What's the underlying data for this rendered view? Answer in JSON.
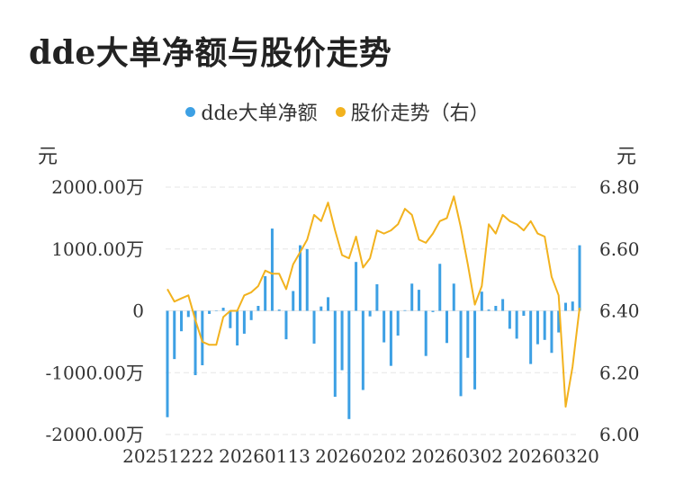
{
  "title": "dde大单净额与股价走势",
  "legend": [
    {
      "name": "dde大单净额",
      "color": "#3da0e4"
    },
    {
      "name": "股价走势（右）",
      "color": "#f2b21e"
    }
  ],
  "left_unit": "元",
  "right_unit": "元",
  "chart_data": {
    "type": "bar+line",
    "left_axis": {
      "ticks": [
        2000,
        1000,
        0,
        -1000,
        -2000
      ],
      "tick_labels": [
        "2000.00万",
        "1000.00万",
        "0",
        "-1000.00万",
        "-2000.00万"
      ],
      "ylim": [
        -2000,
        2000
      ],
      "unit": "万元"
    },
    "right_axis": {
      "ticks": [
        6.8,
        6.6,
        6.4,
        6.2,
        6.0
      ],
      "tick_labels": [
        "6.80",
        "6.60",
        "6.40",
        "6.20",
        "6.00"
      ],
      "ylim": [
        6.0,
        6.8
      ]
    },
    "x_tick_labels": [
      "20251222",
      "20260113",
      "20260202",
      "20260302",
      "20260320"
    ],
    "grid": true,
    "series": [
      {
        "name": "dde大单净额",
        "type": "bar",
        "axis": "left",
        "values": [
          -1720,
          -780,
          -330,
          -100,
          -1040,
          -880,
          -50,
          0,
          50,
          -280,
          -560,
          -370,
          -150,
          80,
          560,
          1330,
          20,
          -460,
          320,
          1060,
          1000,
          -530,
          70,
          220,
          -1390,
          -960,
          -1750,
          790,
          -1280,
          -90,
          430,
          -510,
          -890,
          -400,
          10,
          440,
          340,
          -730,
          -20,
          760,
          -520,
          440,
          -1380,
          -760,
          -1270,
          310,
          20,
          80,
          190,
          -290,
          -450,
          -80,
          -860,
          -540,
          -470,
          -680,
          -350,
          130,
          150,
          1060
        ]
      },
      {
        "name": "股价走势（右）",
        "type": "line",
        "axis": "right",
        "values": [
          6.47,
          6.43,
          6.44,
          6.45,
          6.37,
          6.3,
          6.29,
          6.29,
          6.38,
          6.4,
          6.4,
          6.45,
          6.46,
          6.48,
          6.53,
          6.52,
          6.52,
          6.47,
          6.55,
          6.59,
          6.63,
          6.71,
          6.69,
          6.75,
          6.66,
          6.58,
          6.57,
          6.64,
          6.54,
          6.57,
          6.66,
          6.65,
          6.66,
          6.68,
          6.73,
          6.71,
          6.63,
          6.62,
          6.65,
          6.69,
          6.7,
          6.77,
          6.67,
          6.55,
          6.42,
          6.48,
          6.68,
          6.65,
          6.71,
          6.69,
          6.68,
          6.66,
          6.69,
          6.65,
          6.64,
          6.51,
          6.45,
          6.09,
          6.22,
          6.41
        ]
      }
    ]
  }
}
